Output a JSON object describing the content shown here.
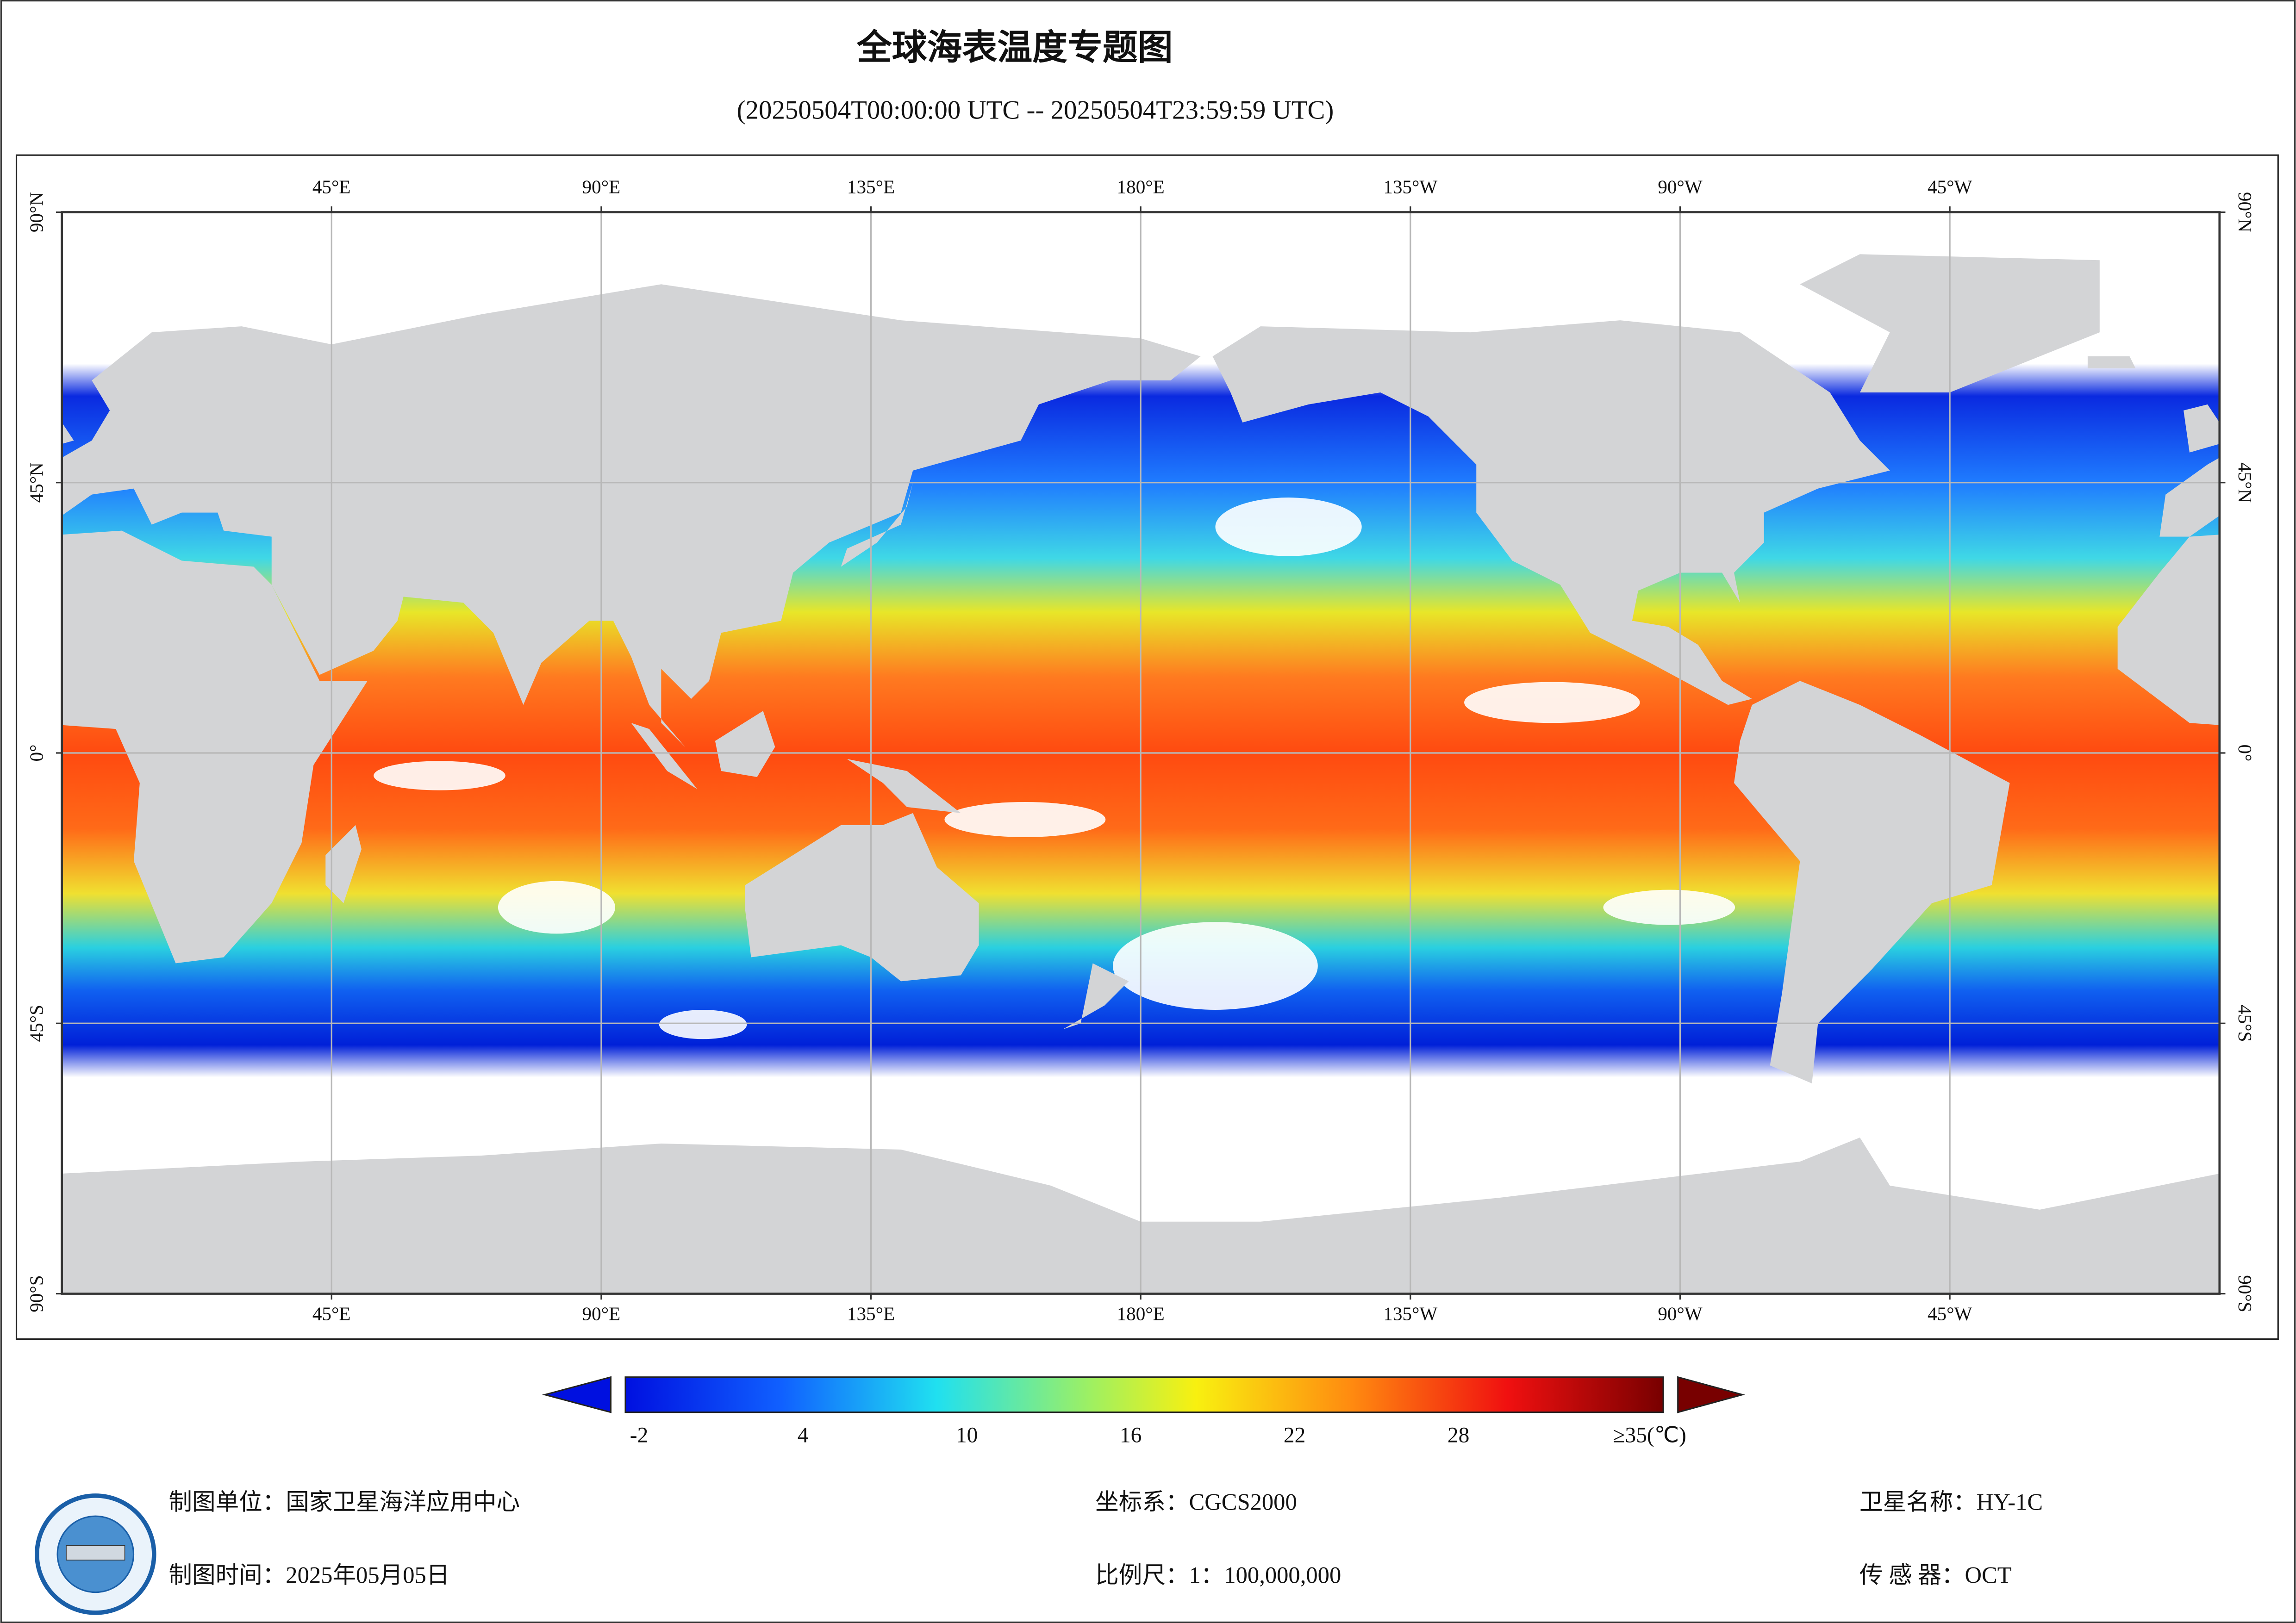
{
  "title": "全球海表温度专题图",
  "subtitle": "(20250504T00:00:00 UTC -- 20250504T23:59:59 UTC)",
  "map": {
    "lon_range": [
      0,
      360
    ],
    "lat_range": [
      -90,
      90
    ],
    "grid": true,
    "lon_ticks": [
      {
        "value": 45,
        "label": "45°E"
      },
      {
        "value": 90,
        "label": "90°E"
      },
      {
        "value": 135,
        "label": "135°E"
      },
      {
        "value": 180,
        "label": "180°E"
      },
      {
        "value": 225,
        "label": "135°W"
      },
      {
        "value": 270,
        "label": "90°W"
      },
      {
        "value": 315,
        "label": "45°W"
      }
    ],
    "lat_ticks": [
      {
        "value": 90,
        "label": "90°N"
      },
      {
        "value": 45,
        "label": "45°N"
      },
      {
        "value": 0,
        "label": "0°"
      },
      {
        "value": -45,
        "label": "45°S"
      },
      {
        "value": -90,
        "label": "90°S"
      }
    ]
  },
  "colorbar": {
    "range": [
      -2.5,
      35.5
    ],
    "ticks": [
      -2,
      4,
      10,
      16,
      22,
      28,
      {
        "value": 35,
        "label": "≥35(℃)"
      }
    ]
  },
  "footer": {
    "unit": "制图单位：国家卫星海洋应用中心",
    "time": "制图时间：2025年05月05日",
    "crs": "坐标系：CGCS2000",
    "scale": "比例尺：1：100,000,000",
    "satellite": "卫星名称：HY-1C",
    "sensor": "传 感 器：OCT"
  }
}
